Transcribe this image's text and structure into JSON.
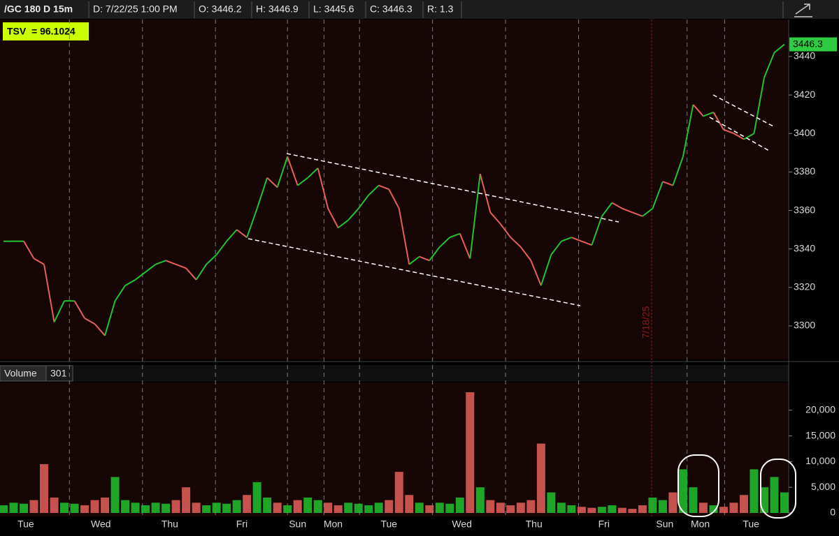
{
  "chart_data": [
    {
      "type": "line",
      "title": "/GC 180 D 15m",
      "info": [
        "D: 7/22/25 1:00 PM",
        "O: 3446.2",
        "H: 3446.9",
        "L: 3445.6",
        "C: 3446.3",
        "R: 1.3"
      ],
      "study_label": "TSV  = 96.1024",
      "values": [
        3344,
        3344,
        3344,
        3335,
        3332,
        3302,
        3313,
        3313,
        3304,
        3301,
        3295,
        3313,
        3321,
        3324,
        3328,
        3332,
        3334,
        3332,
        3330,
        3324,
        3332,
        3337,
        3344,
        3350,
        3346,
        3361,
        3377,
        3372,
        3388,
        3373,
        3377,
        3382,
        3361,
        3351,
        3355,
        3361,
        3368,
        3373,
        3371,
        3361,
        3332,
        3336,
        3334,
        3341,
        3346,
        3348,
        3335,
        3379,
        3359,
        3353,
        3346,
        3341,
        3334,
        3321,
        3337,
        3344,
        3346,
        3344,
        3342,
        3357,
        3364,
        3361,
        3359,
        3357,
        3361,
        3375,
        3373,
        3388,
        3415,
        3409,
        3411,
        3402,
        3400,
        3397,
        3400,
        3429,
        3442,
        3446.3
      ],
      "up_color": "#22c32e",
      "down_color": "#e5605b",
      "last_color": "#2ecc40",
      "xlim": [
        0,
        77
      ],
      "ylim": [
        3282.6,
        3459.2
      ],
      "yticks": [
        3300,
        3320,
        3340,
        3360,
        3380,
        3400,
        3420,
        3440
      ],
      "xgrid": [
        6.5,
        13.7,
        20.9,
        28.0,
        31.6,
        35.1,
        42.3,
        49.5,
        56.7,
        67.4,
        71.1
      ],
      "vline": {
        "x": 63.9,
        "label": "7/18/25",
        "color": "#8b1a1a"
      }
    },
    {
      "type": "bar",
      "title": "Volume",
      "subtitle": "301",
      "values": [
        1500,
        2000,
        1800,
        2500,
        9500,
        3000,
        2000,
        1800,
        1500,
        2500,
        3000,
        7000,
        2500,
        2000,
        1500,
        2000,
        1800,
        2500,
        5000,
        2000,
        1500,
        2000,
        1800,
        2500,
        3500,
        6000,
        3000,
        2000,
        1500,
        2500,
        3000,
        2500,
        2000,
        1500,
        2000,
        1800,
        1500,
        2000,
        2500,
        8000,
        3500,
        2000,
        1500,
        2000,
        1800,
        3000,
        23500,
        5000,
        2500,
        2000,
        1500,
        2000,
        2500,
        13500,
        4000,
        2000,
        1500,
        1200,
        1000,
        1200,
        1500,
        1000,
        800,
        1500,
        3000,
        2500,
        4000,
        8500,
        5000,
        2000,
        1500,
        1200,
        2000,
        3500,
        8500,
        5000,
        7000,
        4000
      ],
      "xlim": [
        0,
        77
      ],
      "ylim": [
        0,
        25400
      ],
      "yticks": [
        {
          "value": 0,
          "label": "0"
        },
        {
          "value": 5000,
          "label": "5,000"
        },
        {
          "value": 10000,
          "label": "10,000"
        },
        {
          "value": 15000,
          "label": "15,000"
        },
        {
          "value": 20000,
          "label": "20,000"
        }
      ],
      "xticks": [
        {
          "value": 2.2,
          "label": "Tue"
        },
        {
          "value": 9.6,
          "label": "Wed"
        },
        {
          "value": 16.4,
          "label": "Thu"
        },
        {
          "value": 23.5,
          "label": "Fri"
        },
        {
          "value": 29.0,
          "label": "Sun"
        },
        {
          "value": 32.5,
          "label": "Mon"
        },
        {
          "value": 38.0,
          "label": "Tue"
        },
        {
          "value": 45.2,
          "label": "Wed"
        },
        {
          "value": 52.3,
          "label": "Thu"
        },
        {
          "value": 59.2,
          "label": "Fri"
        },
        {
          "value": 65.2,
          "label": "Sun"
        },
        {
          "value": 68.7,
          "label": "Mon"
        },
        {
          "value": 73.7,
          "label": "Tue"
        }
      ]
    }
  ]
}
